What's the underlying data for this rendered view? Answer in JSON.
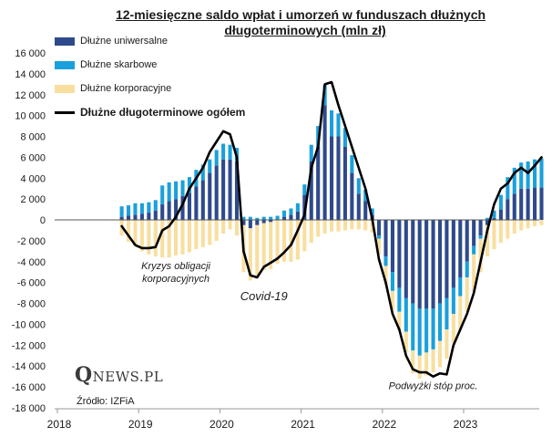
{
  "chart_data": {
    "type": "bar",
    "title_line1": "12-miesięczne saldo wpłat i umorzeń w funduszach dłużnych",
    "title_line2": "długoterminowych (mln zł)",
    "ylim": [
      -18000,
      16000
    ],
    "y_ticks": [
      "16 000",
      "14 000",
      "12 000",
      "10 000",
      "8 000",
      "6 000",
      "4 000",
      "2 000",
      "0",
      "-2 000",
      "-4 000",
      "-6 000",
      "-8 000",
      "-10 000",
      "-12 000",
      "-14 000",
      "-16 000",
      "-18 000"
    ],
    "y_tick_values": [
      16000,
      14000,
      12000,
      10000,
      8000,
      6000,
      4000,
      2000,
      0,
      -2000,
      -4000,
      -6000,
      -8000,
      -10000,
      -12000,
      -14000,
      -16000,
      -18000
    ],
    "x_ticks": [
      "2018",
      "2019",
      "2020",
      "2021",
      "2022",
      "2023"
    ],
    "x_tick_values": [
      2018,
      2019,
      2020,
      2021,
      2022,
      2023
    ],
    "x_range": [
      2018.0,
      2024.0
    ],
    "grid": false,
    "legend_placement": "top-left",
    "months": [
      "2018-10",
      "2018-11",
      "2018-12",
      "2019-01",
      "2019-02",
      "2019-03",
      "2019-04",
      "2019-05",
      "2019-06",
      "2019-07",
      "2019-08",
      "2019-09",
      "2019-10",
      "2019-11",
      "2019-12",
      "2020-01",
      "2020-02",
      "2020-03",
      "2020-04",
      "2020-05",
      "2020-06",
      "2020-07",
      "2020-08",
      "2020-09",
      "2020-10",
      "2020-11",
      "2020-12",
      "2021-01",
      "2021-02",
      "2021-03",
      "2021-04",
      "2021-05",
      "2021-06",
      "2021-07",
      "2021-08",
      "2021-09",
      "2021-10",
      "2021-11",
      "2021-12",
      "2022-01",
      "2022-02",
      "2022-03",
      "2022-04",
      "2022-05",
      "2022-06",
      "2022-07",
      "2022-08",
      "2022-09",
      "2022-10",
      "2022-11",
      "2022-12",
      "2023-01",
      "2023-02",
      "2023-03",
      "2023-04",
      "2023-05",
      "2023-06",
      "2023-07",
      "2023-08",
      "2023-09",
      "2023-10",
      "2023-11",
      "2023-12"
    ],
    "series": [
      {
        "name": "Dłużne uniwersalne",
        "color": "#2e4a8c",
        "values": [
          300,
          400,
          500,
          600,
          700,
          900,
          1500,
          1800,
          2000,
          2300,
          2600,
          3200,
          3800,
          4500,
          5200,
          5800,
          5800,
          5600,
          -500,
          -800,
          -500,
          -300,
          -200,
          0,
          300,
          500,
          800,
          2400,
          5600,
          7000,
          11000,
          8000,
          8000,
          7000,
          4500,
          2500,
          1800,
          500,
          -1500,
          -3500,
          -5000,
          -6500,
          -7500,
          -8000,
          -8500,
          -8500,
          -8500,
          -8000,
          -7500,
          -6500,
          -5500,
          -4000,
          -2500,
          -1500,
          -500,
          200,
          1000,
          2000,
          2500,
          3000,
          3000,
          3100,
          3100
        ]
      },
      {
        "name": "Dłużne skarbowe",
        "color": "#1aa0dc",
        "values": [
          1000,
          1000,
          1100,
          1000,
          1000,
          1000,
          1800,
          1800,
          1700,
          1500,
          1500,
          1600,
          1500,
          1300,
          1500,
          1500,
          1400,
          1300,
          300,
          300,
          200,
          300,
          300,
          400,
          600,
          600,
          800,
          1000,
          1600,
          2000,
          1900,
          2500,
          2200,
          1800,
          1700,
          1500,
          1100,
          600,
          -300,
          -900,
          -1800,
          -2300,
          -3200,
          -4500,
          -4500,
          -4200,
          -3900,
          -3600,
          -3000,
          -2500,
          -1800,
          -1500,
          -800,
          -300,
          200,
          700,
          1400,
          2100,
          2500,
          2500,
          2600,
          2700,
          2800
        ]
      },
      {
        "name": "Dłużne korporacyjne",
        "color": "#f8dfa0",
        "values": [
          -1500,
          -2100,
          -2500,
          -3000,
          -3300,
          -3500,
          -3600,
          -3600,
          -3400,
          -3300,
          -3100,
          -2800,
          -2600,
          -2400,
          -2000,
          -1300,
          -900,
          -1500,
          -4500,
          -5000,
          -4800,
          -4500,
          -4500,
          -4200,
          -4000,
          -4000,
          -3800,
          -3000,
          -2200,
          -1600,
          -1300,
          -1100,
          -1100,
          -1000,
          -900,
          -900,
          -1000,
          -1200,
          -1500,
          -1800,
          -1800,
          -1800,
          -2000,
          -2200,
          -2200,
          -2200,
          -2200,
          -2500,
          -2800,
          -2800,
          -3200,
          -3300,
          -3500,
          -3200,
          -3000,
          -2800,
          -2200,
          -1800,
          -1300,
          -1000,
          -800,
          -600,
          -500
        ]
      }
    ],
    "total": {
      "name": "Dłużne długoterminowe ogółem",
      "color": "#000000",
      "values": [
        -600,
        -1500,
        -2400,
        -2700,
        -2700,
        -2600,
        -1000,
        -600,
        300,
        1500,
        3000,
        4000,
        5000,
        6500,
        7500,
        8500,
        8200,
        6000,
        -3000,
        -5300,
        -5500,
        -4500,
        -4100,
        -3700,
        -3100,
        -2400,
        -1000,
        500,
        5000,
        7000,
        13000,
        13200,
        11000,
        9000,
        7000,
        5000,
        3000,
        100,
        -3800,
        -6000,
        -9000,
        -10500,
        -13000,
        -14300,
        -14600,
        -14600,
        -15000,
        -14700,
        -14800,
        -12000,
        -10500,
        -9000,
        -7000,
        -4000,
        -1000,
        1500,
        3000,
        3500,
        4500,
        5000,
        4500,
        5200,
        6000
      ]
    },
    "annotations": [
      {
        "text_line1": "Kryzys obligacji",
        "text_line2": "korporacyjnych",
        "x": "2019-06",
        "y": -4700
      },
      {
        "text": "Covid-19",
        "x": "2020-07",
        "y": -7700
      },
      {
        "text": "Podwyżki stóp proc.",
        "x": "2022-08",
        "y": -16200
      }
    ],
    "logo_text_big": "Q",
    "logo_text": "NEWS.PL",
    "source_text": "Źródło: IZFiA"
  }
}
